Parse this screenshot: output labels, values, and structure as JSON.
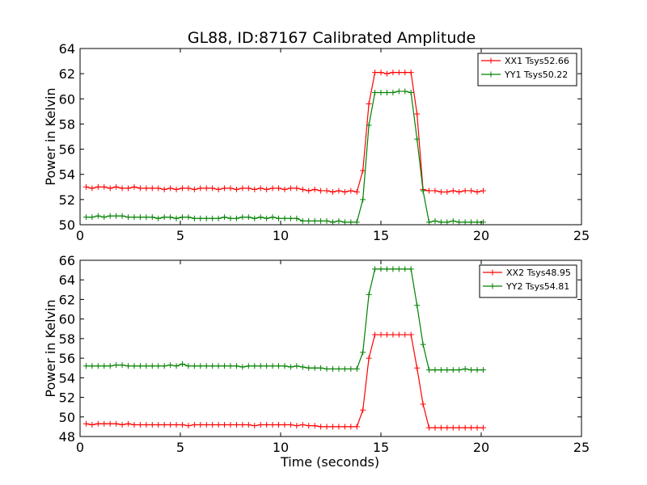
{
  "figure": {
    "title": "GL88, ID:87167 Calibrated Amplitude"
  },
  "chart_data": [
    {
      "type": "line",
      "xlabel": "",
      "ylabel": "Power in Kelvin",
      "xlim": [
        0,
        25
      ],
      "ylim": [
        50,
        64
      ],
      "xticks": [
        0,
        5,
        10,
        15,
        20,
        25
      ],
      "yticks": [
        50,
        52,
        54,
        56,
        58,
        60,
        62,
        64
      ],
      "legend_position": "top-right",
      "series": [
        {
          "name": "XX1 Tsys52.66",
          "color": "#ff0000",
          "x": [
            0.3,
            0.6,
            0.9,
            1.2,
            1.5,
            1.8,
            2.1,
            2.4,
            2.7,
            3.0,
            3.3,
            3.6,
            3.9,
            4.2,
            4.5,
            4.8,
            5.1,
            5.4,
            5.7,
            6.0,
            6.3,
            6.6,
            6.9,
            7.2,
            7.5,
            7.8,
            8.1,
            8.4,
            8.7,
            9.0,
            9.3,
            9.6,
            9.9,
            10.2,
            10.5,
            10.8,
            11.1,
            11.4,
            11.7,
            12.0,
            12.3,
            12.6,
            12.9,
            13.2,
            13.5,
            13.8,
            14.1,
            14.4,
            14.7,
            15.0,
            15.3,
            15.6,
            15.9,
            16.2,
            16.5,
            16.8,
            17.1,
            17.4,
            17.7,
            18.0,
            18.3,
            18.6,
            18.9,
            19.2,
            19.5,
            19.8,
            20.1
          ],
          "values": [
            53.0,
            52.9,
            53.0,
            53.0,
            52.9,
            53.0,
            52.9,
            52.9,
            53.0,
            52.9,
            52.9,
            52.9,
            52.9,
            52.8,
            52.9,
            52.8,
            52.9,
            52.9,
            52.8,
            52.9,
            52.9,
            52.9,
            52.8,
            52.9,
            52.9,
            52.8,
            52.9,
            52.9,
            52.8,
            52.9,
            52.8,
            52.9,
            52.9,
            52.8,
            52.9,
            52.9,
            52.8,
            52.7,
            52.8,
            52.7,
            52.7,
            52.6,
            52.7,
            52.6,
            52.7,
            52.6,
            54.3,
            59.6,
            62.1,
            62.1,
            62.0,
            62.1,
            62.1,
            62.1,
            62.1,
            58.8,
            52.8,
            52.7,
            52.7,
            52.6,
            52.6,
            52.7,
            52.6,
            52.7,
            52.7,
            52.6,
            52.7
          ]
        },
        {
          "name": "YY1 Tsys50.22",
          "color": "#008000",
          "x": [
            0.3,
            0.6,
            0.9,
            1.2,
            1.5,
            1.8,
            2.1,
            2.4,
            2.7,
            3.0,
            3.3,
            3.6,
            3.9,
            4.2,
            4.5,
            4.8,
            5.1,
            5.4,
            5.7,
            6.0,
            6.3,
            6.6,
            6.9,
            7.2,
            7.5,
            7.8,
            8.1,
            8.4,
            8.7,
            9.0,
            9.3,
            9.6,
            9.9,
            10.2,
            10.5,
            10.8,
            11.1,
            11.4,
            11.7,
            12.0,
            12.3,
            12.6,
            12.9,
            13.2,
            13.5,
            13.8,
            14.1,
            14.4,
            14.7,
            15.0,
            15.3,
            15.6,
            15.9,
            16.2,
            16.5,
            16.8,
            17.1,
            17.4,
            17.7,
            18.0,
            18.3,
            18.6,
            18.9,
            19.2,
            19.5,
            19.8,
            20.1
          ],
          "values": [
            50.6,
            50.6,
            50.7,
            50.6,
            50.7,
            50.7,
            50.7,
            50.6,
            50.6,
            50.6,
            50.6,
            50.6,
            50.5,
            50.6,
            50.6,
            50.5,
            50.6,
            50.6,
            50.5,
            50.5,
            50.5,
            50.5,
            50.5,
            50.6,
            50.5,
            50.5,
            50.6,
            50.6,
            50.5,
            50.6,
            50.5,
            50.6,
            50.5,
            50.5,
            50.5,
            50.5,
            50.3,
            50.3,
            50.3,
            50.3,
            50.3,
            50.2,
            50.3,
            50.2,
            50.2,
            50.2,
            52.0,
            57.9,
            60.5,
            60.5,
            60.5,
            60.5,
            60.6,
            60.6,
            60.5,
            56.8,
            52.7,
            50.2,
            50.3,
            50.2,
            50.2,
            50.3,
            50.2,
            50.2,
            50.2,
            50.2,
            50.2
          ]
        }
      ]
    },
    {
      "type": "line",
      "xlabel": "Time (seconds)",
      "ylabel": "Power in Kelvin",
      "xlim": [
        0,
        25
      ],
      "ylim": [
        48,
        66
      ],
      "xticks": [
        0,
        5,
        10,
        15,
        20,
        25
      ],
      "yticks": [
        48,
        50,
        52,
        54,
        56,
        58,
        60,
        62,
        64,
        66
      ],
      "legend_position": "top-right",
      "series": [
        {
          "name": "XX2 Tsys48.95",
          "color": "#ff0000",
          "x": [
            0.3,
            0.6,
            0.9,
            1.2,
            1.5,
            1.8,
            2.1,
            2.4,
            2.7,
            3.0,
            3.3,
            3.6,
            3.9,
            4.2,
            4.5,
            4.8,
            5.1,
            5.4,
            5.7,
            6.0,
            6.3,
            6.6,
            6.9,
            7.2,
            7.5,
            7.8,
            8.1,
            8.4,
            8.7,
            9.0,
            9.3,
            9.6,
            9.9,
            10.2,
            10.5,
            10.8,
            11.1,
            11.4,
            11.7,
            12.0,
            12.3,
            12.6,
            12.9,
            13.2,
            13.5,
            13.8,
            14.1,
            14.4,
            14.7,
            15.0,
            15.3,
            15.6,
            15.9,
            16.2,
            16.5,
            16.8,
            17.1,
            17.4,
            17.7,
            18.0,
            18.3,
            18.6,
            18.9,
            19.2,
            19.5,
            19.8,
            20.1
          ],
          "values": [
            49.3,
            49.2,
            49.3,
            49.3,
            49.3,
            49.3,
            49.2,
            49.3,
            49.2,
            49.2,
            49.2,
            49.2,
            49.2,
            49.2,
            49.2,
            49.2,
            49.2,
            49.1,
            49.2,
            49.2,
            49.2,
            49.2,
            49.2,
            49.2,
            49.2,
            49.2,
            49.2,
            49.2,
            49.1,
            49.2,
            49.2,
            49.2,
            49.2,
            49.2,
            49.2,
            49.1,
            49.2,
            49.1,
            49.1,
            49.0,
            49.0,
            49.0,
            49.0,
            49.0,
            49.0,
            49.0,
            50.7,
            56.0,
            58.4,
            58.4,
            58.4,
            58.4,
            58.4,
            58.4,
            58.4,
            55.0,
            51.3,
            48.9,
            48.9,
            48.9,
            48.9,
            48.9,
            48.9,
            48.9,
            48.9,
            48.9,
            48.9
          ]
        },
        {
          "name": "YY2 Tsys54.81",
          "color": "#008000",
          "x": [
            0.3,
            0.6,
            0.9,
            1.2,
            1.5,
            1.8,
            2.1,
            2.4,
            2.7,
            3.0,
            3.3,
            3.6,
            3.9,
            4.2,
            4.5,
            4.8,
            5.1,
            5.4,
            5.7,
            6.0,
            6.3,
            6.6,
            6.9,
            7.2,
            7.5,
            7.8,
            8.1,
            8.4,
            8.7,
            9.0,
            9.3,
            9.6,
            9.9,
            10.2,
            10.5,
            10.8,
            11.1,
            11.4,
            11.7,
            12.0,
            12.3,
            12.6,
            12.9,
            13.2,
            13.5,
            13.8,
            14.1,
            14.4,
            14.7,
            15.0,
            15.3,
            15.6,
            15.9,
            16.2,
            16.5,
            16.8,
            17.1,
            17.4,
            17.7,
            18.0,
            18.3,
            18.6,
            18.9,
            19.2,
            19.5,
            19.8,
            20.1
          ],
          "values": [
            55.2,
            55.2,
            55.2,
            55.2,
            55.2,
            55.3,
            55.3,
            55.2,
            55.2,
            55.2,
            55.2,
            55.2,
            55.2,
            55.2,
            55.3,
            55.2,
            55.4,
            55.2,
            55.2,
            55.2,
            55.2,
            55.2,
            55.2,
            55.2,
            55.2,
            55.2,
            55.1,
            55.2,
            55.2,
            55.2,
            55.2,
            55.2,
            55.2,
            55.2,
            55.1,
            55.2,
            55.1,
            55.0,
            55.0,
            55.0,
            54.9,
            54.9,
            54.9,
            54.9,
            54.9,
            54.9,
            56.6,
            62.5,
            65.1,
            65.1,
            65.1,
            65.1,
            65.1,
            65.1,
            65.1,
            61.4,
            57.4,
            54.8,
            54.8,
            54.8,
            54.8,
            54.8,
            54.8,
            54.9,
            54.8,
            54.8,
            54.8
          ]
        }
      ]
    }
  ]
}
